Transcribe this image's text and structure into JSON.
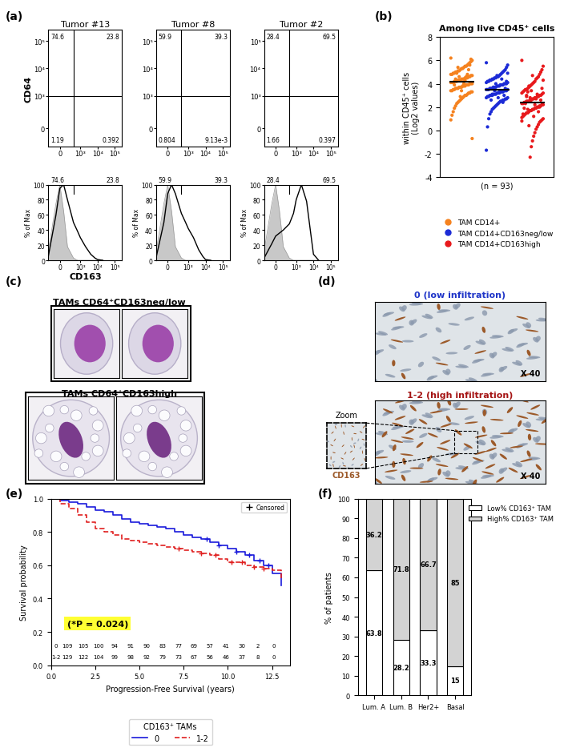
{
  "chart_data": [
    {
      "type": "flow_cytometry",
      "panel": "(a)",
      "xlabel": "CD163",
      "ylabel": "CD64",
      "xlim": [
        -300,
        262144
      ],
      "ylim": [
        -300,
        262144
      ],
      "xticks": [
        0,
        {
          "value": 1000,
          "label": "10³"
        },
        {
          "value": 10000,
          "label": "10⁴"
        },
        {
          "value": 100000,
          "label": "10⁵"
        }
      ],
      "yticks": [
        0,
        {
          "value": 1000,
          "label": "10³"
        },
        {
          "value": 10000,
          "label": "10⁴"
        },
        {
          "value": 100000,
          "label": "10⁵"
        }
      ],
      "gate": {
        "x": 400,
        "y": 1000
      },
      "hist_ylabel": "% of Max",
      "hist_ylim": [
        0,
        100
      ],
      "hist_yticks": [
        0,
        20,
        40,
        60,
        80,
        100
      ],
      "plots": [
        {
          "title": "Tumor #13",
          "quadrants": {
            "upper_left": 74.6,
            "upper_right": 23.8,
            "lower_left": 1.19,
            "lower_right": 0.392
          },
          "histogram": {
            "x": [
              -300,
              -100,
              0,
              100,
              200,
              400,
              700,
              1000,
              2000,
              4000,
              7000,
              10000,
              20000
            ],
            "series": [
              {
                "type": "area",
                "color": "#c8c8c8",
                "values": [
                  12,
                  75,
                  100,
                  65,
                  18,
                  3,
                  0,
                  0,
                  0,
                  0,
                  0,
                  0,
                  0
                ]
              },
              {
                "type": "line",
                "color": "#000000",
                "values": [
                  5,
                  60,
                  95,
                  100,
                  80,
                  50,
                  38,
                  30,
                  18,
                  8,
                  3,
                  1,
                  0
                ]
              }
            ],
            "gate_values": [
              74.6,
              23.8
            ]
          }
        },
        {
          "title": "Tumor #8",
          "quadrants": {
            "upper_left": 59.9,
            "upper_right": 39.3,
            "lower_left": 0.804,
            "lower_right": {
              "value": 0.00913,
              "label": "9.13e-3"
            }
          },
          "histogram": {
            "x": [
              -300,
              -100,
              0,
              100,
              200,
              400,
              700,
              1000,
              2000,
              4000,
              7000,
              10000,
              20000
            ],
            "series": [
              {
                "type": "area",
                "color": "#c8c8c8",
                "values": [
                  12,
                  75,
                  100,
                  65,
                  18,
                  3,
                  0,
                  0,
                  0,
                  0,
                  0,
                  0,
                  0
                ]
              },
              {
                "type": "line",
                "color": "#000000",
                "values": [
                  4,
                  50,
                  88,
                  100,
                  88,
                  62,
                  50,
                  42,
                  30,
                  14,
                  5,
                  1,
                  0
                ]
              }
            ],
            "gate_values": [
              59.9,
              39.3
            ]
          }
        },
        {
          "title": "Tumor #2",
          "quadrants": {
            "upper_left": 28.4,
            "upper_right": 69.5,
            "lower_left": 1.66,
            "lower_right": 0.397
          },
          "histogram": {
            "x": [
              -300,
              -100,
              0,
              100,
              200,
              400,
              700,
              1000,
              2000,
              4000,
              7000,
              10000,
              20000
            ],
            "series": [
              {
                "type": "area",
                "color": "#c8c8c8",
                "values": [
                  12,
                  75,
                  100,
                  65,
                  18,
                  3,
                  0,
                  0,
                  0,
                  0,
                  0,
                  0,
                  0
                ]
              },
              {
                "type": "line",
                "color": "#000000",
                "values": [
                  3,
                  22,
                  32,
                  36,
                  40,
                  48,
                  62,
                  80,
                  100,
                  78,
                  35,
                  8,
                  0
                ]
              }
            ],
            "gate_values": [
              28.4,
              69.5
            ]
          }
        }
      ]
    },
    {
      "type": "scatter",
      "panel": "(b)",
      "title": "Among live CD45⁺ cells",
      "ylabel": "within CD45⁺ cells\n(Log2 values)",
      "xlabel": "(n = 93)",
      "ylim": [
        -4,
        8
      ],
      "yticks": [
        -4,
        -2,
        0,
        2,
        4,
        6,
        8
      ],
      "tick_labels": "y",
      "legend": "lower center",
      "series": [
        {
          "name": "TAM CD14+",
          "color": "#f5821f",
          "mean": 4.2,
          "values": [
            6.2,
            6.0,
            5.9,
            5.8,
            5.7,
            5.6,
            5.5,
            5.5,
            5.4,
            5.3,
            5.3,
            5.2,
            5.1,
            5.1,
            5.0,
            5.0,
            4.9,
            4.9,
            4.8,
            4.8,
            4.7,
            4.7,
            4.6,
            4.6,
            4.5,
            4.5,
            4.5,
            4.4,
            4.4,
            4.4,
            4.3,
            4.3,
            4.3,
            4.2,
            4.2,
            4.2,
            4.1,
            4.1,
            4.1,
            4.0,
            4.0,
            4.0,
            3.9,
            3.9,
            3.9,
            3.8,
            3.8,
            3.8,
            3.7,
            3.7,
            3.7,
            3.6,
            3.6,
            3.6,
            3.5,
            3.5,
            3.4,
            3.4,
            3.3,
            3.3,
            3.2,
            3.2,
            3.1,
            3.0,
            3.0,
            2.9,
            2.8,
            2.7,
            2.6,
            2.5,
            2.4,
            2.3,
            2.1,
            1.9,
            1.6,
            1.3,
            0.9,
            -0.7,
            6.1,
            5.6,
            5.2,
            4.8,
            4.6,
            4.3,
            4.0,
            3.8,
            3.4,
            2.9,
            4.6,
            5.4,
            4.9,
            4.4,
            3.9
          ]
        },
        {
          "name": "TAM CD14+CD163neg/low",
          "color": "#1c2bd6",
          "mean": 3.5,
          "values": [
            5.8,
            5.6,
            5.4,
            5.2,
            5.1,
            5.0,
            4.9,
            4.8,
            4.7,
            4.6,
            4.6,
            4.5,
            4.5,
            4.4,
            4.4,
            4.3,
            4.3,
            4.2,
            4.2,
            4.1,
            4.1,
            4.0,
            4.0,
            4.0,
            3.9,
            3.9,
            3.9,
            3.8,
            3.8,
            3.8,
            3.7,
            3.7,
            3.7,
            3.6,
            3.6,
            3.6,
            3.5,
            3.5,
            3.5,
            3.5,
            3.4,
            3.4,
            3.4,
            3.3,
            3.3,
            3.3,
            3.2,
            3.2,
            3.2,
            3.1,
            3.1,
            3.1,
            3.0,
            3.0,
            3.0,
            2.9,
            2.9,
            2.8,
            2.8,
            2.7,
            2.7,
            2.6,
            2.6,
            2.5,
            2.5,
            2.4,
            2.3,
            2.2,
            2.1,
            2.0,
            1.9,
            1.8,
            1.6,
            1.4,
            1.0,
            0.3,
            -1.7,
            4.9,
            4.2,
            3.6,
            3.0,
            2.4,
            4.4,
            3.9,
            3.3,
            2.8,
            4.7,
            4.0,
            3.4,
            3.7,
            3.1,
            2.6,
            4.3
          ]
        },
        {
          "name": "TAM CD14+CD163high",
          "color": "#e8191c",
          "mean": 2.4,
          "values": [
            6.0,
            5.5,
            5.2,
            5.0,
            4.8,
            4.6,
            4.5,
            4.4,
            4.2,
            4.1,
            4.0,
            3.9,
            3.8,
            3.7,
            3.6,
            3.5,
            3.5,
            3.4,
            3.3,
            3.2,
            3.2,
            3.1,
            3.0,
            3.0,
            2.9,
            2.9,
            2.8,
            2.8,
            2.7,
            2.7,
            2.6,
            2.6,
            2.5,
            2.5,
            2.5,
            2.4,
            2.4,
            2.3,
            2.3,
            2.2,
            2.2,
            2.1,
            2.1,
            2.0,
            2.0,
            1.9,
            1.9,
            1.8,
            1.8,
            1.7,
            1.7,
            1.6,
            1.5,
            1.5,
            1.4,
            1.3,
            1.2,
            1.1,
            1.0,
            0.9,
            0.8,
            0.7,
            0.5,
            0.3,
            0.1,
            -0.2,
            -0.5,
            -0.9,
            -1.4,
            -2.3,
            3.8,
            3.3,
            2.9,
            2.4,
            1.9,
            1.4,
            0.8,
            4.3,
            3.6,
            2.6,
            2.0,
            1.6,
            3.1,
            2.7,
            2.2,
            1.2,
            4.7,
            3.4,
            2.8,
            0.4,
            1.8,
            3.0,
            2.3
          ]
        }
      ]
    },
    {
      "type": "image",
      "panel": "(c)",
      "images": [
        {
          "title": "TAMs CD64⁺CD163neg/low"
        },
        {
          "title": "TAMs CD64⁺CD163high"
        }
      ]
    },
    {
      "type": "image",
      "panel": "(d)",
      "images": [
        {
          "title": "0 (low infiltration)",
          "color": "#1f35c8",
          "magnification": "X 40"
        },
        {
          "title": "1-2 (high infiltration)",
          "color": "#a51515",
          "magnification": "X 40",
          "inset": "Zoom",
          "stain": "CD163",
          "stain_color": "#9c5a2a"
        }
      ]
    },
    {
      "type": "line",
      "panel": "(e)",
      "xlabel": "Progression-Free Survival (years)",
      "ylabel": "Survival probability",
      "xlim": [
        0,
        13.5
      ],
      "ylim": [
        0,
        1.0
      ],
      "xticks": [
        {
          "value": 0,
          "label": "0.0"
        },
        {
          "value": 2.5,
          "label": "2.5"
        },
        {
          "value": 5,
          "label": "5.0"
        },
        {
          "value": 7.5,
          "label": "7.5"
        },
        {
          "value": 10,
          "label": "10.0"
        },
        {
          "value": 12.5,
          "label": "12.5"
        }
      ],
      "yticks": [
        {
          "value": 0,
          "label": "0.0"
        },
        {
          "value": 0.2,
          "label": "0.2"
        },
        {
          "value": 0.4,
          "label": "0.4"
        },
        {
          "value": 0.6,
          "label": "0.6"
        },
        {
          "value": 0.8,
          "label": "0.8"
        },
        {
          "value": 1,
          "label": "1.0"
        }
      ],
      "annotations": [
        "(*P = 0.024)"
      ],
      "legend": "upper right",
      "censor_label": "Censored",
      "legend_title": "CD163⁺ TAMs",
      "series": [
        {
          "name": "0",
          "color": "#1a1adb",
          "line_style": "solid",
          "x": [
            0,
            0.5,
            1,
            1.5,
            2,
            2.5,
            3,
            3.5,
            4,
            4.5,
            5,
            5.5,
            6,
            6.5,
            7,
            7.5,
            8,
            8.5,
            9,
            9.5,
            10,
            10.5,
            11,
            11.5,
            12,
            12.5,
            13
          ],
          "values": [
            1,
            0.99,
            0.98,
            0.97,
            0.95,
            0.93,
            0.92,
            0.9,
            0.88,
            0.86,
            0.85,
            0.84,
            0.83,
            0.82,
            0.8,
            0.78,
            0.77,
            0.76,
            0.74,
            0.72,
            0.7,
            0.68,
            0.66,
            0.63,
            0.6,
            0.55,
            0.48
          ],
          "censored": [
            8.8,
            9.5,
            10.5,
            11.2,
            11.8,
            12.3
          ],
          "at_risk": [
            109,
            105,
            100,
            94,
            91,
            90,
            83,
            77,
            69,
            57,
            41,
            30,
            2,
            0
          ]
        },
        {
          "name": "1-2",
          "color": "#e02020",
          "line_style": "dashed",
          "x": [
            0,
            0.5,
            1,
            1.5,
            2,
            2.5,
            3,
            3.5,
            4,
            4.5,
            5,
            5.5,
            6,
            6.5,
            7,
            7.5,
            8,
            8.5,
            9,
            9.5,
            10,
            10.5,
            11,
            11.5,
            12,
            12.5,
            13
          ],
          "values": [
            1,
            0.97,
            0.94,
            0.9,
            0.86,
            0.82,
            0.8,
            0.78,
            0.76,
            0.75,
            0.74,
            0.73,
            0.72,
            0.71,
            0.7,
            0.69,
            0.68,
            0.67,
            0.66,
            0.64,
            0.62,
            0.62,
            0.6,
            0.59,
            0.58,
            0.57,
            0.52
          ],
          "censored": [
            7.2,
            8.5,
            9.3,
            10.2,
            10.8,
            11.5,
            12.0
          ],
          "at_risk": [
            129,
            122,
            104,
            99,
            98,
            92,
            79,
            73,
            67,
            56,
            46,
            37,
            8,
            0
          ]
        }
      ]
    },
    {
      "type": "bar",
      "panel": "(f)",
      "stacked": true,
      "data_labels": true,
      "legend": "upper right",
      "categories": [
        "Lum. A",
        "Lum. B",
        "Her2+",
        "Basal"
      ],
      "ylabel": "% of patients",
      "ylim": [
        0,
        100
      ],
      "yticks": [
        0,
        10,
        20,
        30,
        40,
        50,
        60,
        70,
        80,
        90,
        100
      ],
      "series": [
        {
          "name": "Low% CD163⁺ TAM",
          "color": "#ffffff",
          "values": [
            63.8,
            28.2,
            33.3,
            15
          ]
        },
        {
          "name": "High% CD163⁺ TAM",
          "color": "#d3d3d3",
          "values": [
            36.2,
            71.8,
            66.7,
            85
          ]
        }
      ]
    }
  ]
}
